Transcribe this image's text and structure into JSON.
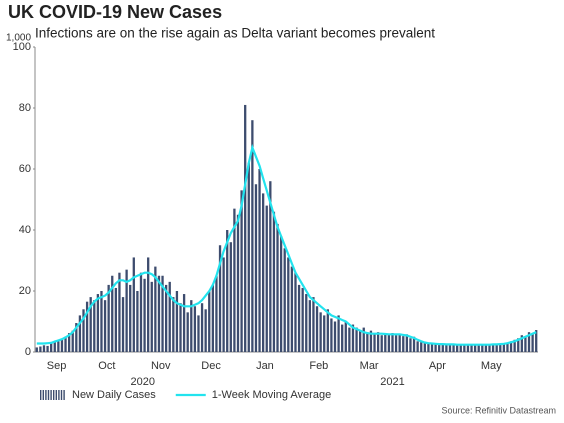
{
  "chart_data": {
    "type": "bar",
    "title": "UK COVID-19 New Cases",
    "subtitle": "Infections are on the rise again as Delta variant becomes prevalent",
    "y_unit": "1,000",
    "source": "Source: Refinitiv Datastream",
    "xlim": [
      0,
      140
    ],
    "xticks": [
      {
        "value": 6,
        "label": "Sep"
      },
      {
        "value": 20,
        "label": "Oct"
      },
      {
        "value": 35,
        "label": "Nov"
      },
      {
        "value": 49,
        "label": "Dec"
      },
      {
        "value": 64,
        "label": "Jan"
      },
      {
        "value": 79,
        "label": "Feb"
      },
      {
        "value": 93,
        "label": "Mar"
      },
      {
        "value": 112,
        "label": "Apr"
      },
      {
        "value": 127,
        "label": "May"
      }
    ],
    "year_ticks": [
      {
        "value": 30,
        "label": "2020"
      },
      {
        "value": 99.5,
        "label": "2021"
      }
    ],
    "ylim": [
      0,
      100
    ],
    "yticks": [
      0,
      20,
      40,
      60,
      80,
      100
    ],
    "series": [
      {
        "name": "New Daily Cases",
        "type": "bar",
        "color": "#3d4c6e",
        "values": [
          1.5,
          1.8,
          2.2,
          2.0,
          2.8,
          3.2,
          3.5,
          4.4,
          5.0,
          6.2,
          7.0,
          9.5,
          12,
          14,
          16.5,
          18,
          17,
          19,
          20,
          17,
          22,
          25,
          21,
          26,
          18,
          27,
          22,
          31,
          20,
          26,
          24,
          31,
          23,
          28,
          25,
          25,
          22,
          23,
          18,
          20,
          16,
          19,
          13,
          17,
          15,
          12,
          16,
          14,
          20,
          22,
          25,
          35,
          31,
          40,
          36,
          47,
          45,
          53,
          81,
          62,
          76,
          55,
          60,
          52,
          48,
          56,
          46,
          42,
          38,
          34,
          31,
          28,
          26,
          22,
          21,
          19,
          17,
          18,
          15,
          13,
          12,
          14,
          11,
          10,
          12,
          9,
          10,
          8,
          9,
          8,
          7,
          8,
          6.5,
          7,
          6,
          6.5,
          5.5,
          6,
          5.8,
          6.2,
          5.5,
          6,
          5.2,
          5.8,
          4.5,
          5,
          3.5,
          3.2,
          3,
          2.8,
          2.8,
          2.6,
          2.5,
          2.7,
          2.4,
          2.6,
          2.3,
          2.5,
          2.2,
          2.4,
          2.3,
          2.5,
          2.2,
          2.4,
          2.3,
          2.5,
          2.2,
          2.4,
          2.6,
          2.5,
          2.8,
          3,
          3.5,
          4,
          4.5,
          5.5,
          5,
          6.5,
          6,
          7.2
        ]
      },
      {
        "name": "1-Week Moving Average",
        "type": "line",
        "color": "#22e3ee",
        "values": [
          2.8,
          2.8,
          2.8,
          2.9,
          3.0,
          3.4,
          3.8,
          4.2,
          4.8,
          5.5,
          6.5,
          8,
          9.5,
          11,
          13,
          15,
          16.5,
          17.5,
          18,
          18.5,
          19.5,
          21,
          22.5,
          23.5,
          23.5,
          23,
          23.5,
          24.5,
          25,
          25.5,
          26,
          26,
          25.5,
          24.5,
          23,
          21.5,
          20,
          18.5,
          17,
          16,
          15.5,
          15,
          15,
          15,
          15.5,
          16,
          17,
          18.5,
          20,
          22,
          25,
          29,
          33,
          36,
          39,
          41,
          43,
          48,
          55,
          62,
          67,
          64,
          61,
          57,
          53,
          49,
          45,
          41,
          38,
          35,
          32,
          29,
          26,
          24,
          22,
          20,
          18,
          17,
          16,
          15,
          14,
          13,
          12,
          11.5,
          11,
          10.5,
          10,
          9,
          8,
          7.5,
          7,
          6.5,
          6.2,
          6,
          6,
          6,
          6,
          5.9,
          5.8,
          5.8,
          5.8,
          5.8,
          5.6,
          5.4,
          5,
          4.6,
          4,
          3.5,
          3.1,
          2.9,
          2.8,
          2.7,
          2.6,
          2.6,
          2.5,
          2.5,
          2.5,
          2.4,
          2.4,
          2.4,
          2.4,
          2.4,
          2.4,
          2.4,
          2.4,
          2.4,
          2.4,
          2.5,
          2.5,
          2.6,
          2.7,
          2.9,
          3.2,
          3.5,
          4,
          4.5,
          5,
          5.5,
          6,
          6.5
        ]
      }
    ],
    "grid": false
  }
}
